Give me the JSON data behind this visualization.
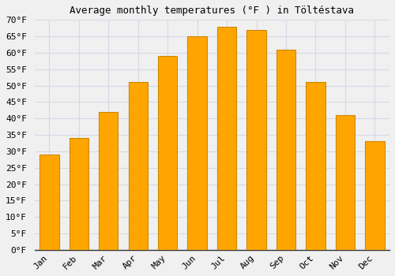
{
  "months": [
    "Jan",
    "Feb",
    "Mar",
    "Apr",
    "May",
    "Jun",
    "Jul",
    "Aug",
    "Sep",
    "Oct",
    "Nov",
    "Dec"
  ],
  "values": [
    29,
    34,
    42,
    51,
    59,
    65,
    68,
    67,
    61,
    51,
    41,
    33
  ],
  "bar_color": "#FFA500",
  "bar_edge_color": "#CC8800",
  "title": "Average monthly temperatures (°F ) in Töltéstava",
  "ylim": [
    0,
    70
  ],
  "ytick_step": 5,
  "background_color": "#f0f0f0",
  "grid_color": "#d8d8e8",
  "font_family": "monospace",
  "title_fontsize": 9,
  "tick_fontsize": 8
}
